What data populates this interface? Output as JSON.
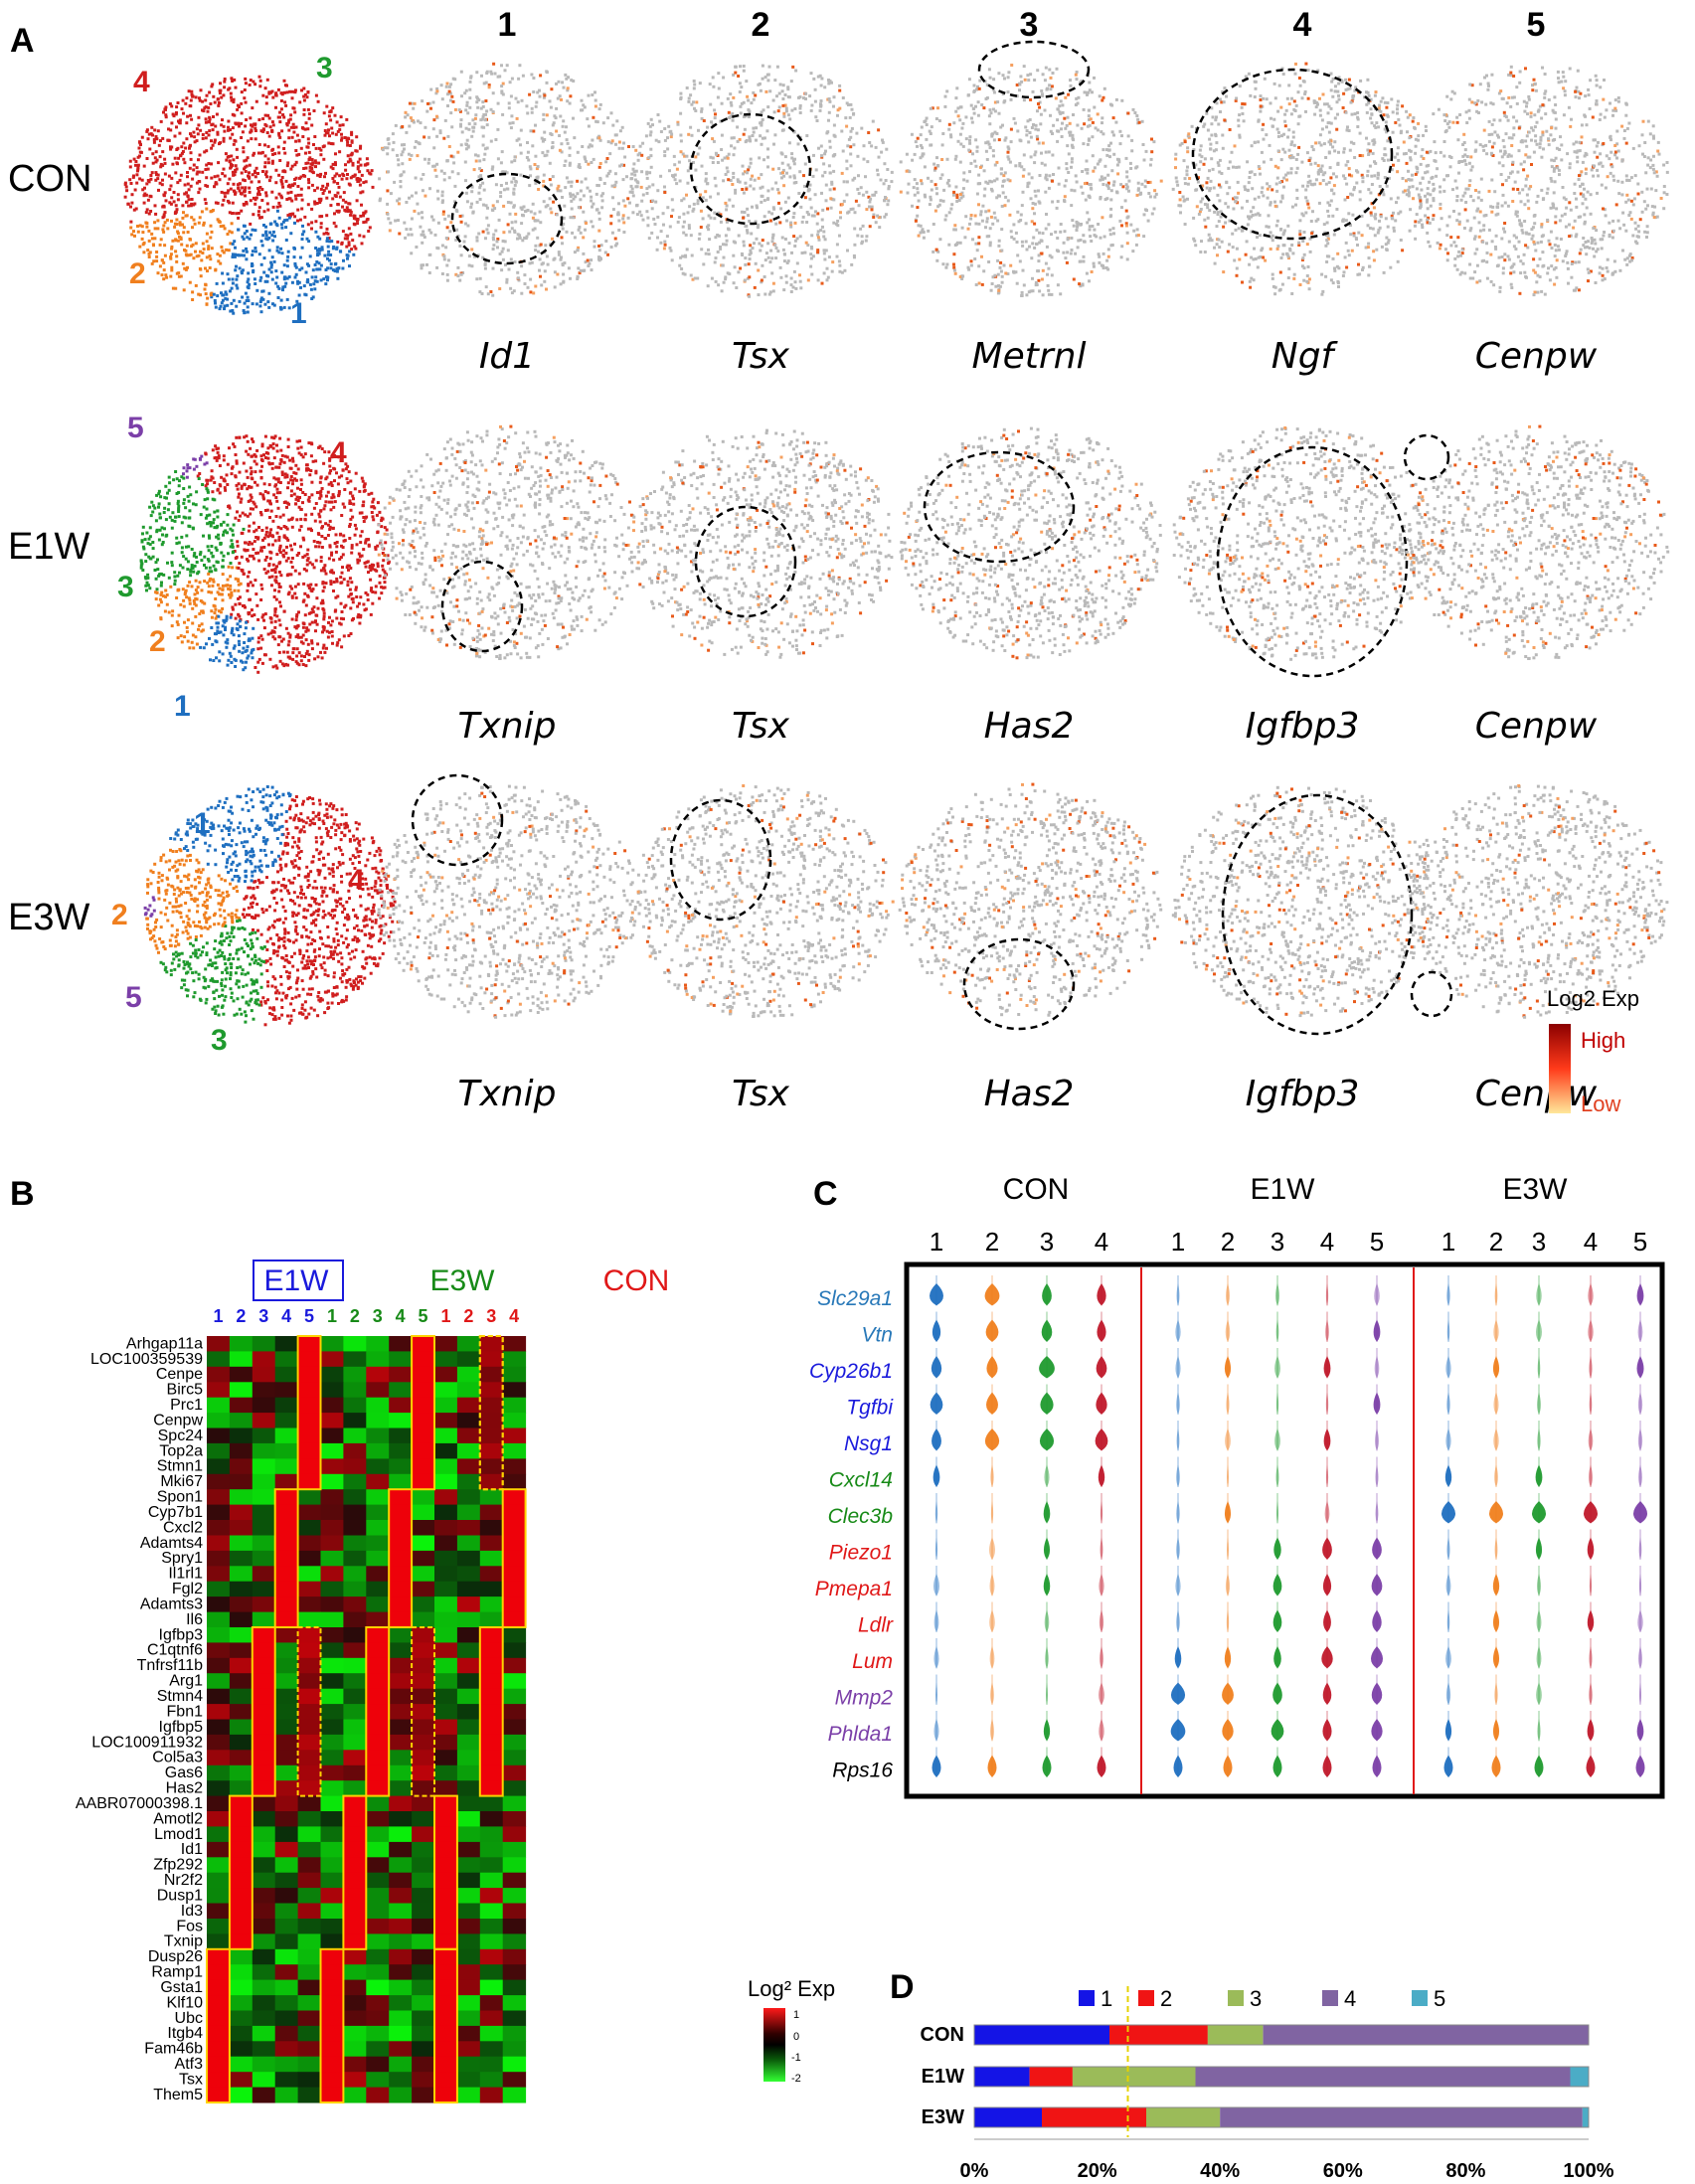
{
  "panel_labels": {
    "a": "A",
    "b": "B",
    "c": "C",
    "d": "D"
  },
  "panelA": {
    "column_numbers": [
      "1",
      "2",
      "3",
      "4",
      "5"
    ],
    "rows": [
      {
        "label": "CON",
        "genes": [
          "Id1",
          "Tsx",
          "Metrnl",
          "Ngf",
          "Cenpw"
        ],
        "cluster_labels": [
          "1",
          "2",
          "3",
          "4"
        ]
      },
      {
        "label": "E1W",
        "genes": [
          "Txnip",
          "Tsx",
          "Has2",
          "Igfbp3",
          "Cenpw"
        ],
        "cluster_labels": [
          "1",
          "2",
          "3",
          "4",
          "5"
        ]
      },
      {
        "label": "E3W",
        "genes": [
          "Txnip",
          "Tsx",
          "Has2",
          "Igfbp3",
          "Cenpw"
        ],
        "cluster_labels": [
          "1",
          "2",
          "3",
          "4",
          "5"
        ]
      }
    ],
    "legend": {
      "title": "Log2 Exp",
      "high": "High",
      "low": "Low"
    },
    "cluster_colors": {
      "1": "#1f6fc0",
      "2": "#f07f1e",
      "3": "#1f9a2e",
      "4": "#d01e1e",
      "5": "#7b3fa8"
    }
  },
  "panelB": {
    "groups": [
      {
        "name": "E1W",
        "color": "#1a1adc",
        "columns": [
          "1",
          "2",
          "3",
          "4",
          "5"
        ]
      },
      {
        "name": "E3W",
        "color": "#178a17",
        "columns": [
          "1",
          "2",
          "3",
          "4",
          "5"
        ]
      },
      {
        "name": "CON",
        "color": "#e01818",
        "columns": [
          "1",
          "2",
          "3",
          "4"
        ]
      }
    ],
    "genes": [
      "Arhgap11a",
      "LOC100359539",
      "Cenpe",
      "Birc5",
      "Prc1",
      "Cenpw",
      "Spc24",
      "Top2a",
      "Stmn1",
      "Mki67",
      "Spon1",
      "Cyp7b1",
      "Cxcl2",
      "Adamts4",
      "Spry1",
      "Il1rl1",
      "Fgl2",
      "Adamts3",
      "Il6",
      "Igfbp3",
      "C1qtnf6",
      "Tnfrsf11b",
      "Arg1",
      "Stmn4",
      "Fbn1",
      "Igfbp5",
      "LOC100911932",
      "Col5a3",
      "Gas6",
      "Has2",
      "AABR07000398.1",
      "Amotl2",
      "Lmod1",
      "Id1",
      "Zfp292",
      "Nr2f2",
      "Dusp1",
      "Id3",
      "Fos",
      "Txnip",
      "Dusp26",
      "Ramp1",
      "Gsta1",
      "Klf10",
      "Ubc",
      "Itgb4",
      "Fam46b",
      "Atf3",
      "Tsx",
      "Them5"
    ],
    "legend": {
      "title": "Log² Exp",
      "ticks": [
        "1",
        "0",
        "-1",
        "-2"
      ]
    }
  },
  "panelC": {
    "groups": [
      {
        "name": "CON",
        "columns": [
          "1",
          "2",
          "3",
          "4"
        ]
      },
      {
        "name": "E1W",
        "columns": [
          "1",
          "2",
          "3",
          "4",
          "5"
        ]
      },
      {
        "name": "E3W",
        "columns": [
          "1",
          "2",
          "3",
          "4",
          "5"
        ]
      }
    ],
    "genes": [
      {
        "name": "Slc29a1",
        "color": "#2878b8"
      },
      {
        "name": "Vtn",
        "color": "#2878b8"
      },
      {
        "name": "Cyp26b1",
        "color": "#1a1adc"
      },
      {
        "name": "Tgfbi",
        "color": "#1a1adc"
      },
      {
        "name": "Nsg1",
        "color": "#1a1adc"
      },
      {
        "name": "Cxcl14",
        "color": "#178a17"
      },
      {
        "name": "Clec3b",
        "color": "#178a17"
      },
      {
        "name": "Piezo1",
        "color": "#e01818"
      },
      {
        "name": "Pmepa1",
        "color": "#e01818"
      },
      {
        "name": "Ldlr",
        "color": "#e01818"
      },
      {
        "name": "Lum",
        "color": "#e01818"
      },
      {
        "name": "Mmp2",
        "color": "#7b3fa8"
      },
      {
        "name": "Phlda1",
        "color": "#7b3fa8"
      },
      {
        "name": "Rps16",
        "color": "#000000"
      }
    ]
  },
  "chart_data": {
    "type": "bar",
    "orientation": "horizontal-stacked-100",
    "categories": [
      "CON",
      "E1W",
      "E3W"
    ],
    "series": [
      {
        "name": "1",
        "color": "#1414e6",
        "values": [
          22,
          9,
          11
        ]
      },
      {
        "name": "2",
        "color": "#f01414",
        "values": [
          16,
          7,
          17
        ]
      },
      {
        "name": "3",
        "color": "#9bbb59",
        "values": [
          9,
          20,
          12
        ]
      },
      {
        "name": "4",
        "color": "#8064a2",
        "values": [
          53,
          61,
          59
        ]
      },
      {
        "name": "5",
        "color": "#4bacc6",
        "values": [
          0,
          3,
          1
        ]
      }
    ],
    "xticks": [
      "0%",
      "20%",
      "40%",
      "60%",
      "80%",
      "100%"
    ],
    "xlim": [
      0,
      100
    ],
    "reference_line": 25
  }
}
